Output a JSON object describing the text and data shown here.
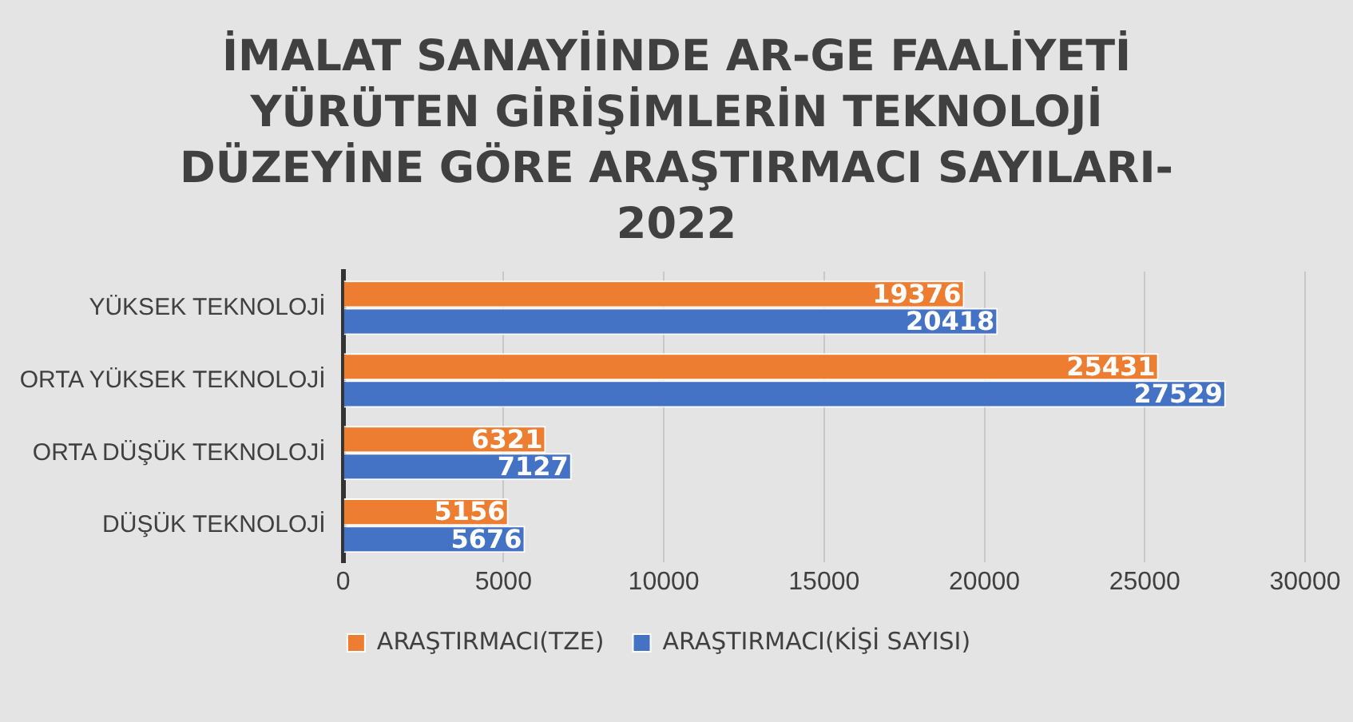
{
  "chart_data": {
    "type": "bar",
    "orientation": "horizontal",
    "title": "İMALAT SANAYİİNDE AR-GE FAALİYETİ YÜRÜTEN GİRİŞİMLERİN TEKNOLOJİ DÜZEYİNE GÖRE ARAŞTIRMACI SAYILARI-2022",
    "categories": [
      "YÜKSEK TEKNOLOJİ",
      "ORTA YÜKSEK TEKNOLOJİ",
      "ORTA DÜŞÜK TEKNOLOJİ",
      "DÜŞÜK TEKNOLOJİ"
    ],
    "series": [
      {
        "name": "ARAŞTIRMACI(TZE)",
        "color": "#ed7d31",
        "values": [
          19376,
          25431,
          6321,
          5156
        ]
      },
      {
        "name": "ARAŞTIRMACI(KİŞİ SAYISI)",
        "color": "#4472c4",
        "values": [
          20418,
          27529,
          7127,
          5676
        ]
      }
    ],
    "xlim": [
      0,
      30000
    ],
    "xticks": [
      0,
      5000,
      10000,
      15000,
      20000,
      25000,
      30000
    ],
    "grid": "x",
    "legend": "bottom",
    "data_labels": true
  }
}
